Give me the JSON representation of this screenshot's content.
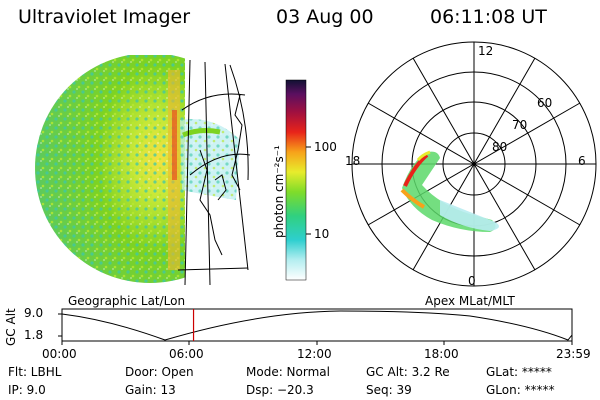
{
  "header": {
    "instrument": "Ultraviolet Imager",
    "date": "03 Aug 00",
    "time": "06:11:08 UT"
  },
  "colorbar": {
    "unit_label": "photon cm⁻²s⁻¹",
    "ticks": [
      "100",
      "10"
    ]
  },
  "polar_plot": {
    "mlt_labels": [
      "12",
      "18",
      "6",
      "0"
    ],
    "mlat_labels": [
      "60",
      "70",
      "80"
    ]
  },
  "projection_labels": {
    "left": "Geographic Lat/Lon",
    "right": "Apex MLat/MLT"
  },
  "gc_alt_plot": {
    "axis_label": "GC Alt",
    "yticks": [
      "9.0",
      "1.8"
    ],
    "xticks": [
      "00:00",
      "06:00",
      "12:00",
      "18:00",
      "23:59"
    ],
    "current_time_hours": 6.19
  },
  "status": {
    "flt": "Flt: LBHL",
    "ip": "IP:  9.0",
    "door": "Door: Open",
    "gain": "Gain: 13",
    "mode": "Mode: Normal",
    "dsp": "Dsp:  −20.3",
    "gc_alt": "GC Alt: 3.2 Re",
    "seq": "Seq: 39",
    "glat": "GLat: *****",
    "glon": "GLon: *****"
  },
  "colors": {
    "current_time_marker": "#cc0000",
    "dayglow_main": "#7ed321",
    "aurora_peak": "#e8231a"
  }
}
